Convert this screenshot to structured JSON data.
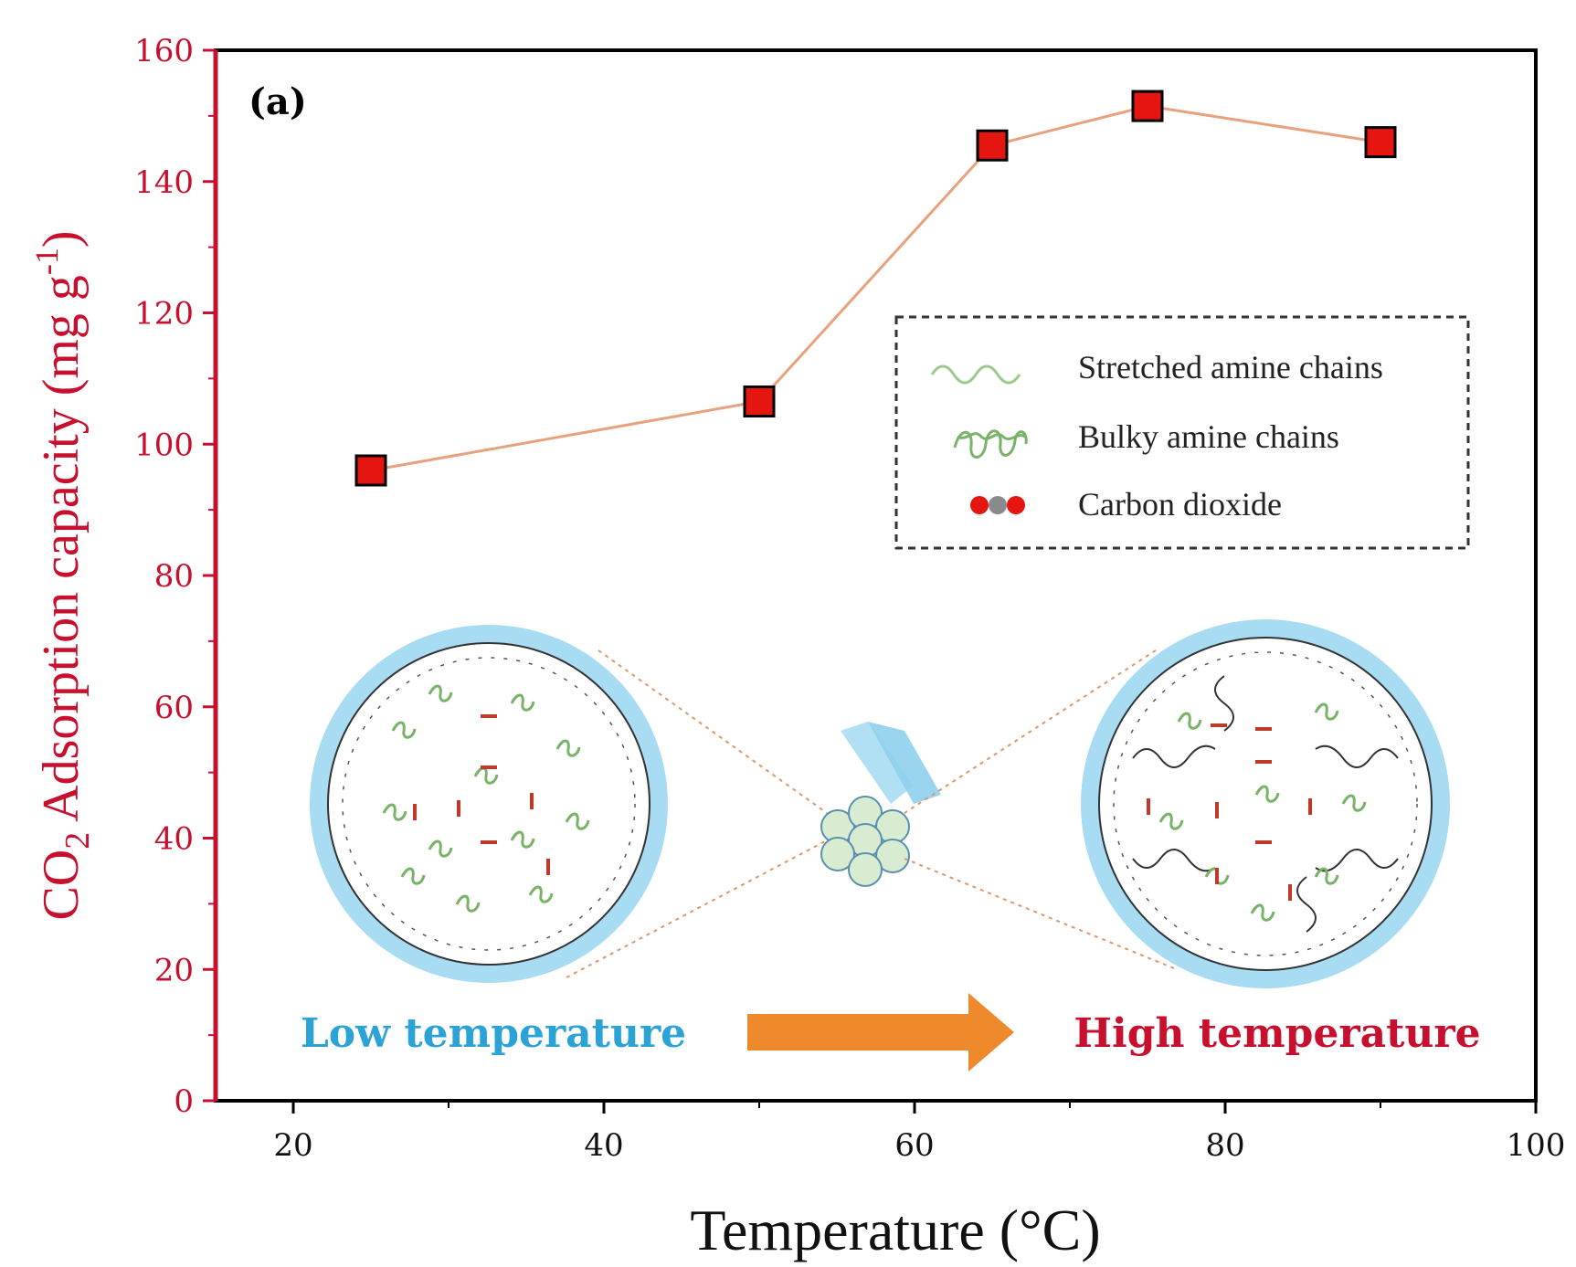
{
  "chart_data": {
    "type": "line",
    "panel_label": "(a)",
    "xlabel": "Temperature (°C)",
    "ylabel": {
      "prefix": "CO",
      "subscript": "2",
      "main": " Adsorption capacity (mg g",
      "superscript": "-1",
      "suffix": ")"
    },
    "xlim": [
      15,
      100
    ],
    "ylim": [
      0,
      160
    ],
    "xticks": [
      20,
      40,
      60,
      80,
      100
    ],
    "yticks": [
      0,
      20,
      40,
      60,
      80,
      100,
      120,
      140,
      160
    ],
    "x": [
      25,
      50,
      65,
      75,
      90
    ],
    "y": [
      96,
      106.5,
      145.5,
      151.5,
      146
    ],
    "grid": false,
    "legend": {
      "placement": "upper-right, dashed box",
      "items": [
        {
          "icon": "wavy-line-icon",
          "label": "Stretched amine chains"
        },
        {
          "icon": "coil-icon",
          "label": "Bulky amine chains"
        },
        {
          "icon": "co2-molecule-icon",
          "label": "Carbon dioxide"
        }
      ]
    },
    "annotations": {
      "low_label": "Low temperature",
      "high_label": "High temperature"
    },
    "colors": {
      "marker_fill": "#e4160f",
      "line": "#e8a17d",
      "y_axis": "#c8102e",
      "low_label": "#2ba3d6",
      "high_label": "#c8102e",
      "arrow": "#ef8a2c",
      "pore_ring": "#a8dcf3",
      "chain_green": "#79b36a"
    }
  }
}
